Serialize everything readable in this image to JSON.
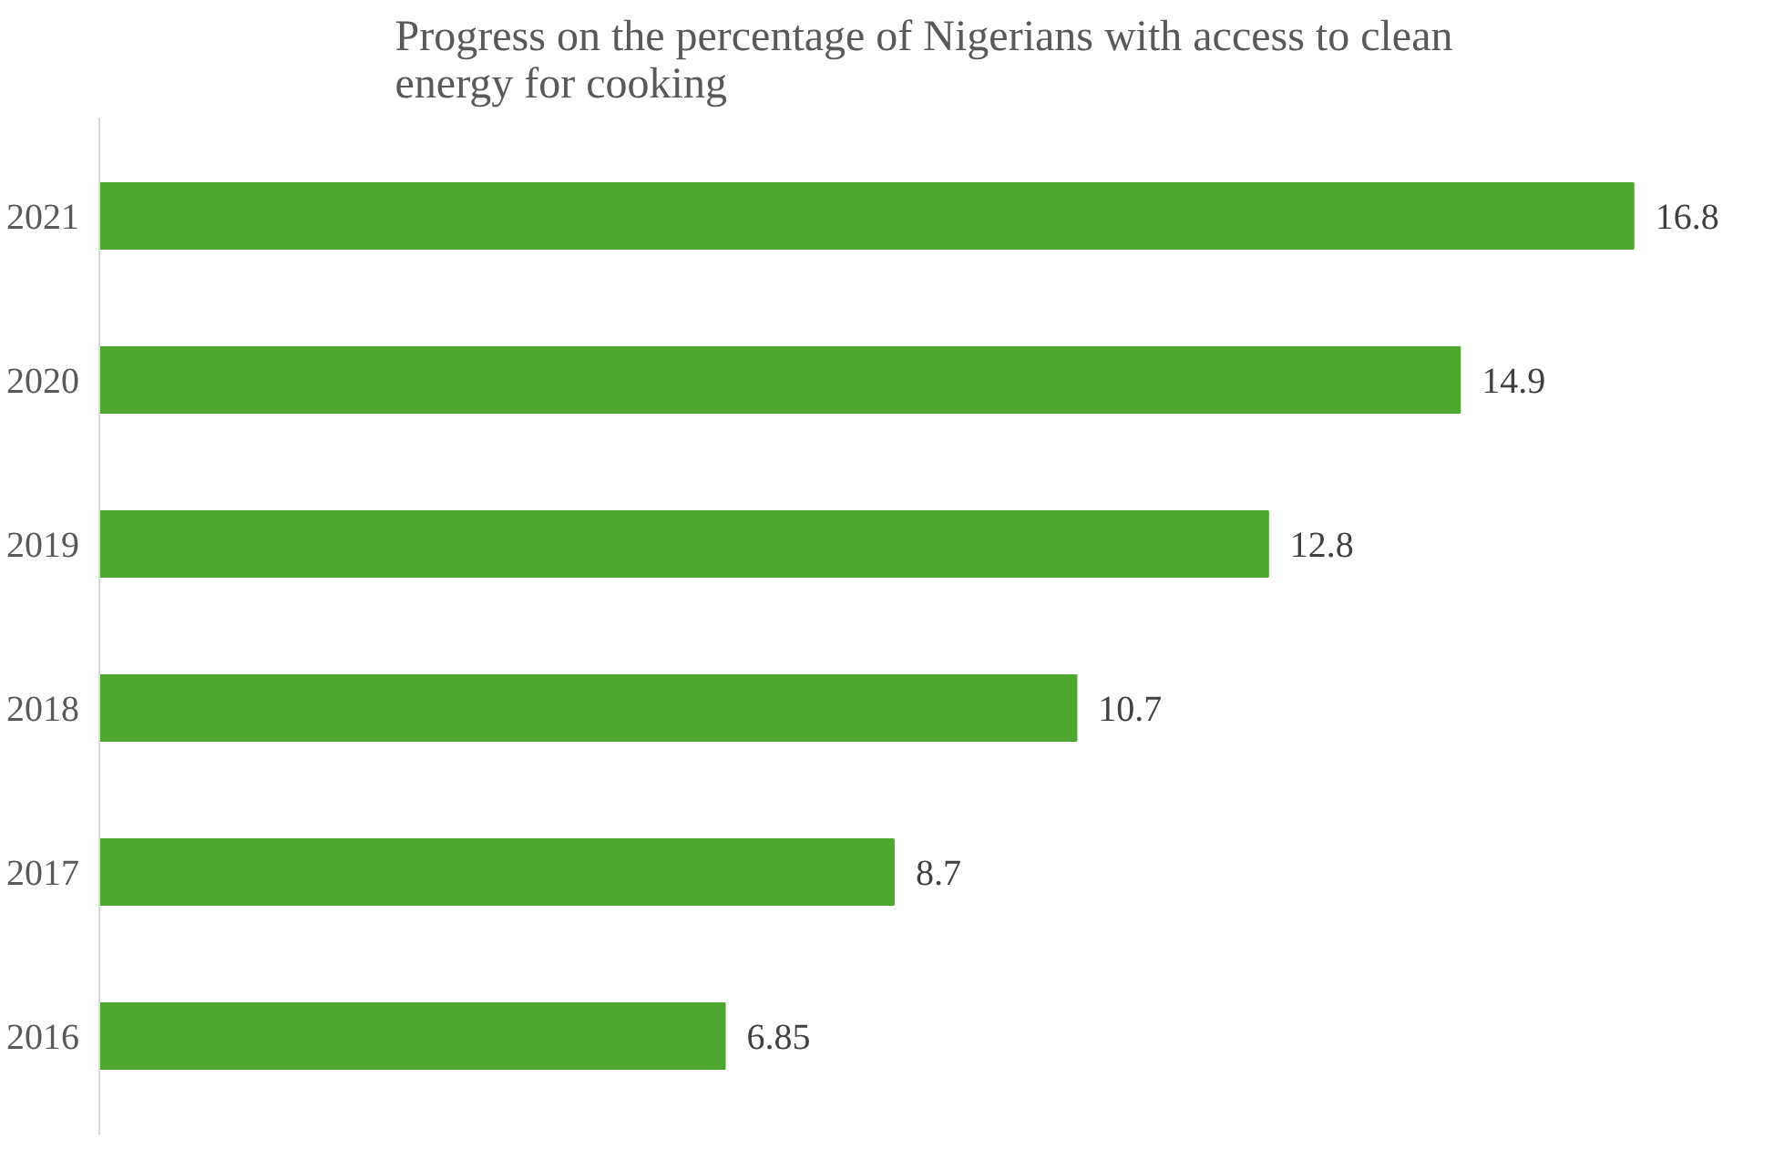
{
  "chart_data": {
    "type": "bar",
    "orientation": "horizontal",
    "title": "Progress on the percentage of Nigerians with access to clean energy for cooking",
    "categories": [
      "2021",
      "2020",
      "2019",
      "2018",
      "2017",
      "2016"
    ],
    "values": [
      16.8,
      14.9,
      12.8,
      10.7,
      8.7,
      6.85
    ],
    "color": "#4ea72e",
    "data_labels": true
  }
}
